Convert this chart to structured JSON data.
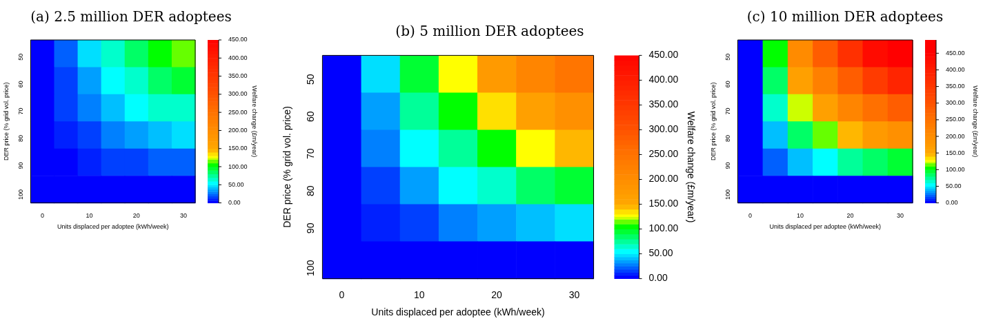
{
  "chart_data": [
    {
      "type": "heatmap",
      "title": "(a) 2.5 million DER adoptees",
      "xlabel": "Units displaced per adoptee (kWh/week)",
      "ylabel": "DER price (% grid vol. price)",
      "clabel": "Welfare change (£m/year)",
      "categories": [
        "0",
        null,
        "10",
        null,
        "20",
        null,
        "30"
      ],
      "y_categories": [
        "50",
        "60",
        "70",
        "80",
        "90",
        "100"
      ],
      "cells": [
        [
          0,
          22,
          45,
          63,
          85,
          100,
          115
        ],
        [
          0,
          18,
          36,
          50,
          68,
          80,
          92
        ],
        [
          0,
          13,
          27,
          38,
          51,
          60,
          69
        ],
        [
          0,
          9,
          18,
          25,
          34,
          40,
          46
        ],
        [
          0,
          4,
          9,
          13,
          17,
          20,
          23
        ],
        [
          0,
          0,
          0,
          0,
          0,
          0,
          0
        ]
      ],
      "clim": [
        0,
        450
      ],
      "cticks": [
        {
          "value": 0,
          "label": "0.00"
        },
        {
          "value": 50,
          "label": "50.00"
        },
        {
          "value": 100,
          "label": "100.00"
        },
        {
          "value": 150,
          "label": "150.00"
        },
        {
          "value": 200,
          "label": "200.00"
        },
        {
          "value": 250,
          "label": "250.00"
        },
        {
          "value": 300,
          "label": "300.00"
        },
        {
          "value": 350,
          "label": "350.00"
        },
        {
          "value": 400,
          "label": "400.00"
        },
        {
          "value": 450,
          "label": "450.00"
        }
      ]
    },
    {
      "type": "heatmap",
      "title": "(b) 5 million DER adoptees",
      "xlabel": "Units displaced per adoptee (kWh/week)",
      "ylabel": "DER price (% grid vol. price)",
      "clabel": "Welfare change (£m/year)",
      "categories": [
        "0",
        null,
        "10",
        null,
        "20",
        null,
        "30"
      ],
      "y_categories": [
        "50",
        "60",
        "70",
        "80",
        "90",
        "100"
      ],
      "cells": [
        [
          0,
          45,
          90,
          125,
          170,
          210,
          245
        ],
        [
          0,
          36,
          72,
          100,
          136,
          168,
          196
        ],
        [
          0,
          27,
          54,
          75,
          102,
          126,
          147
        ],
        [
          0,
          18,
          36,
          50,
          68,
          84,
          98
        ],
        [
          0,
          9,
          18,
          25,
          34,
          42,
          49
        ],
        [
          0,
          0,
          0,
          0,
          0,
          0,
          0
        ]
      ],
      "clim": [
        0,
        450
      ],
      "cticks": [
        {
          "value": 0,
          "label": "0.00"
        },
        {
          "value": 50,
          "label": "50.00"
        },
        {
          "value": 100,
          "label": "100.00"
        },
        {
          "value": 150,
          "label": "150.00"
        },
        {
          "value": 200,
          "label": "200.00"
        },
        {
          "value": 250,
          "label": "250.00"
        },
        {
          "value": 300,
          "label": "300.00"
        },
        {
          "value": 350,
          "label": "350.00"
        },
        {
          "value": 400,
          "label": "400.00"
        },
        {
          "value": 450,
          "label": "450.00"
        }
      ]
    },
    {
      "type": "heatmap",
      "title": "(c) 10 million DER adoptees",
      "xlabel": "Units displaced per adoptee (kWh/week)",
      "ylabel": "DER price (% grid vol. price)",
      "clabel": "Welfare change (£m/year)",
      "categories": [
        "0",
        null,
        "10",
        null,
        "20",
        null,
        "30"
      ],
      "y_categories": [
        "50",
        "60",
        "70",
        "80",
        "90",
        "100"
      ],
      "cells": [
        [
          0,
          100,
          200,
          280,
          360,
          430,
          480
        ],
        [
          0,
          80,
          160,
          224,
          288,
          344,
          384
        ],
        [
          0,
          60,
          120,
          168,
          216,
          258,
          288
        ],
        [
          0,
          40,
          80,
          112,
          144,
          172,
          192
        ],
        [
          0,
          20,
          40,
          56,
          72,
          86,
          96
        ],
        [
          0,
          0,
          0,
          0,
          0,
          0,
          0
        ]
      ],
      "clim": [
        0,
        490
      ],
      "cticks": [
        {
          "value": 0,
          "label": "0.00"
        },
        {
          "value": 50,
          "label": "50.00"
        },
        {
          "value": 100,
          "label": "100.00"
        },
        {
          "value": 150,
          "label": "150.00"
        },
        {
          "value": 200,
          "label": "200.00"
        },
        {
          "value": 250,
          "label": "250.00"
        },
        {
          "value": 300,
          "label": "300.00"
        },
        {
          "value": 350,
          "label": "350.00"
        },
        {
          "value": 400,
          "label": "400.00"
        },
        {
          "value": 450,
          "label": "450.00"
        }
      ]
    }
  ]
}
